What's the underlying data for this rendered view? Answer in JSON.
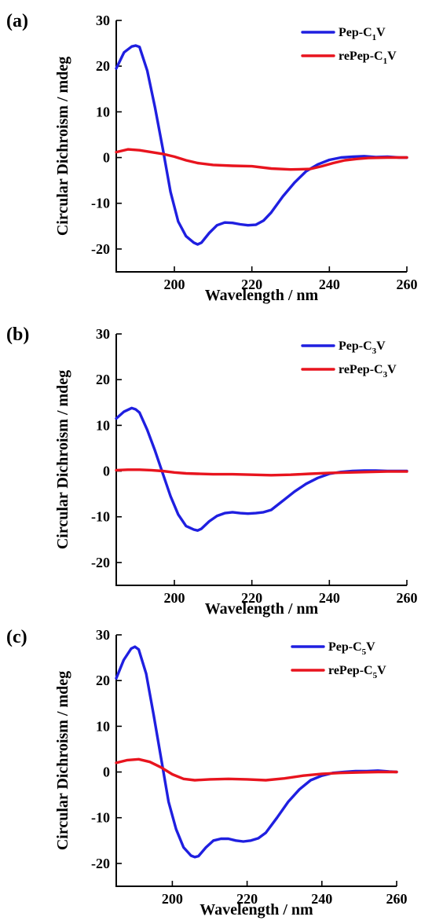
{
  "colors": {
    "blue": "#1f1fe0",
    "red": "#e8141e"
  },
  "chart_data": [
    {
      "type": "line",
      "panel_label": "(a)",
      "xlabel": "Wavelength / nm",
      "ylabel": "Circular Dichroism / mdeg",
      "xlim": [
        185,
        260
      ],
      "ylim": [
        -25,
        30
      ],
      "xticks": [
        200,
        220,
        240,
        260
      ],
      "yticks": [
        30,
        20,
        10,
        0,
        -10,
        -20
      ],
      "grid": false,
      "legend_position": "top-right",
      "series": [
        {
          "name_main": "Pep-C",
          "name_sub": "1",
          "name_end": "V",
          "color": "#1f1fe0",
          "x": [
            185,
            187,
            189,
            190,
            191,
            193,
            195,
            197,
            199,
            201,
            203,
            205,
            206,
            207,
            209,
            211,
            213,
            215,
            217,
            219,
            221,
            223,
            225,
            228,
            231,
            234,
            237,
            240,
            243,
            246,
            249,
            252,
            255,
            258,
            260
          ],
          "y": [
            19.5,
            23,
            24.3,
            24.5,
            24.2,
            19,
            11,
            2,
            -7.5,
            -14,
            -17.2,
            -18.6,
            -19,
            -18.6,
            -16.5,
            -14.8,
            -14.2,
            -14.3,
            -14.6,
            -14.8,
            -14.7,
            -13.8,
            -12,
            -8.5,
            -5.5,
            -3,
            -1.5,
            -0.5,
            0,
            0.2,
            0.3,
            0.1,
            0.2,
            0,
            0
          ]
        },
        {
          "name_main": "rePep-C",
          "name_sub": "1",
          "name_end": "V",
          "color": "#e8141e",
          "x": [
            185,
            188,
            191,
            194,
            197,
            200,
            203,
            206,
            210,
            215,
            220,
            225,
            230,
            235,
            238,
            241,
            244,
            247,
            250,
            255,
            260
          ],
          "y": [
            1.2,
            1.8,
            1.6,
            1.2,
            0.8,
            0.2,
            -0.6,
            -1.2,
            -1.6,
            -1.8,
            -1.9,
            -2.4,
            -2.6,
            -2.5,
            -1.9,
            -1.2,
            -0.6,
            -0.3,
            -0.1,
            0,
            0
          ]
        }
      ]
    },
    {
      "type": "line",
      "panel_label": "(b)",
      "xlabel": "Wavelength / nm",
      "ylabel": "Circular Dichroism / mdeg",
      "xlim": [
        185,
        260
      ],
      "ylim": [
        -25,
        30
      ],
      "xticks": [
        200,
        220,
        240,
        260
      ],
      "yticks": [
        30,
        20,
        10,
        0,
        -10,
        -20
      ],
      "grid": false,
      "legend_position": "top-right",
      "series": [
        {
          "name_main": "Pep-C",
          "name_sub": "3",
          "name_end": "V",
          "color": "#1f1fe0",
          "x": [
            185,
            187,
            189,
            190,
            191,
            193,
            195,
            197,
            199,
            201,
            203,
            205,
            206,
            207,
            209,
            211,
            213,
            215,
            217,
            219,
            221,
            223,
            225,
            228,
            231,
            234,
            237,
            240,
            243,
            246,
            249,
            252,
            255,
            258,
            260
          ],
          "y": [
            11.5,
            13,
            13.8,
            13.5,
            12.8,
            9,
            4.5,
            -0.5,
            -5.5,
            -9.5,
            -12,
            -12.8,
            -13,
            -12.6,
            -11,
            -9.8,
            -9.2,
            -9,
            -9.2,
            -9.3,
            -9.2,
            -9,
            -8.5,
            -6.5,
            -4.5,
            -2.8,
            -1.5,
            -0.6,
            -0.2,
            0,
            0.1,
            0.1,
            0,
            0,
            0
          ]
        },
        {
          "name_main": "rePep-C",
          "name_sub": "3",
          "name_end": "V",
          "color": "#e8141e",
          "x": [
            185,
            188,
            191,
            194,
            197,
            200,
            203,
            206,
            210,
            215,
            220,
            225,
            230,
            235,
            240,
            245,
            250,
            255,
            260
          ],
          "y": [
            0.2,
            0.3,
            0.3,
            0.2,
            0,
            -0.3,
            -0.5,
            -0.6,
            -0.7,
            -0.7,
            -0.8,
            -0.9,
            -0.8,
            -0.6,
            -0.4,
            -0.3,
            -0.2,
            -0.1,
            -0.1
          ]
        }
      ]
    },
    {
      "type": "line",
      "panel_label": "(c)",
      "xlabel": "Wavelength / nm",
      "ylabel": "Circular Dichroism / mdeg",
      "xlim": [
        185,
        260
      ],
      "ylim": [
        -25,
        30
      ],
      "xticks": [
        200,
        220,
        240,
        260
      ],
      "yticks": [
        30,
        20,
        10,
        0,
        -10,
        -20
      ],
      "grid": false,
      "legend_position": "top-right",
      "series": [
        {
          "name_main": "Pep-C",
          "name_sub": "5",
          "name_end": "V",
          "color": "#1f1fe0",
          "x": [
            185,
            187,
            189,
            190,
            191,
            193,
            195,
            197,
            199,
            201,
            203,
            205,
            206,
            207,
            209,
            211,
            213,
            215,
            217,
            219,
            221,
            223,
            225,
            228,
            231,
            234,
            237,
            240,
            243,
            246,
            249,
            252,
            255,
            258,
            260
          ],
          "y": [
            20.5,
            24.5,
            27,
            27.4,
            26.8,
            21.5,
            12.5,
            3,
            -6.5,
            -12.5,
            -16.5,
            -18.3,
            -18.6,
            -18.4,
            -16.5,
            -15,
            -14.6,
            -14.6,
            -15,
            -15.2,
            -15,
            -14.5,
            -13.3,
            -10,
            -6.5,
            -3.8,
            -1.8,
            -0.8,
            -0.2,
            0,
            0.2,
            0.2,
            0.3,
            0.1,
            0
          ]
        },
        {
          "name_main": "rePep-C",
          "name_sub": "5",
          "name_end": "V",
          "color": "#e8141e",
          "x": [
            185,
            188,
            191,
            194,
            197,
            200,
            203,
            206,
            210,
            215,
            220,
            225,
            230,
            235,
            240,
            245,
            250,
            255,
            260
          ],
          "y": [
            2.0,
            2.6,
            2.8,
            2.2,
            1.0,
            -0.5,
            -1.5,
            -1.8,
            -1.6,
            -1.5,
            -1.6,
            -1.8,
            -1.4,
            -0.8,
            -0.4,
            -0.2,
            -0.1,
            0,
            0
          ]
        }
      ]
    }
  ]
}
